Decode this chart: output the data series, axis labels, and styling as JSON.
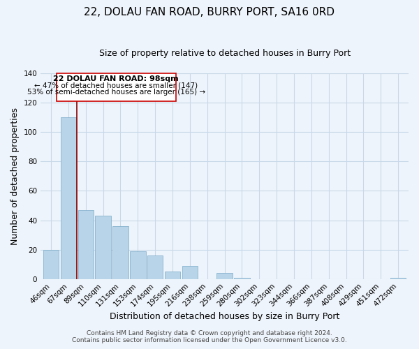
{
  "title": "22, DOLAU FAN ROAD, BURRY PORT, SA16 0RD",
  "subtitle": "Size of property relative to detached houses in Burry Port",
  "xlabel": "Distribution of detached houses by size in Burry Port",
  "ylabel": "Number of detached properties",
  "categories": [
    "46sqm",
    "67sqm",
    "89sqm",
    "110sqm",
    "131sqm",
    "153sqm",
    "174sqm",
    "195sqm",
    "216sqm",
    "238sqm",
    "259sqm",
    "280sqm",
    "302sqm",
    "323sqm",
    "344sqm",
    "366sqm",
    "387sqm",
    "408sqm",
    "429sqm",
    "451sqm",
    "472sqm"
  ],
  "values": [
    20,
    110,
    47,
    43,
    36,
    19,
    16,
    5,
    9,
    0,
    4,
    1,
    0,
    0,
    0,
    0,
    0,
    0,
    0,
    0,
    1
  ],
  "bar_color": "#b8d4e8",
  "bar_edge_color": "#7aaac8",
  "ylim": [
    0,
    140
  ],
  "yticks": [
    0,
    20,
    40,
    60,
    80,
    100,
    120,
    140
  ],
  "property_line_label": "22 DOLAU FAN ROAD: 98sqm",
  "annotation_line1": "← 47% of detached houses are smaller (147)",
  "annotation_line2": "53% of semi-detached houses are larger (165) →",
  "annotation_box_color": "#ffffff",
  "annotation_box_edgecolor": "#cc0000",
  "footer_line1": "Contains HM Land Registry data © Crown copyright and database right 2024.",
  "footer_line2": "Contains public sector information licensed under the Open Government Licence v3.0.",
  "background_color": "#eef4fb",
  "grid_color": "#c8d8e8",
  "title_fontsize": 11,
  "subtitle_fontsize": 9,
  "axis_label_fontsize": 9,
  "tick_fontsize": 7.5,
  "footer_fontsize": 6.5
}
